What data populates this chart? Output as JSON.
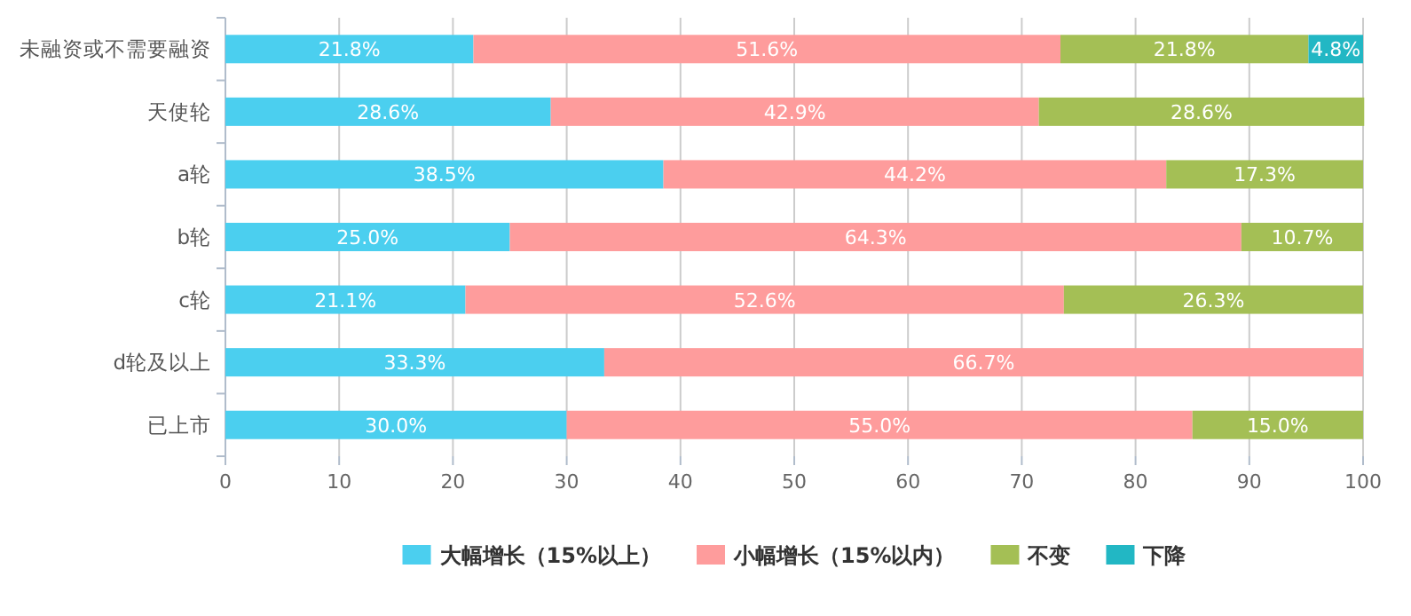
{
  "chart_data": {
    "type": "bar",
    "orientation": "horizontal",
    "stacked": true,
    "categories": [
      "未融资或不需要融资",
      "天使轮",
      "a轮",
      "b轮",
      "c轮",
      "d轮及以上",
      "已上市"
    ],
    "series": [
      {
        "name": "大幅增长（15%以上）",
        "color": "#4bcfef",
        "values": [
          21.8,
          28.6,
          38.5,
          25.0,
          21.1,
          33.3,
          30.0
        ],
        "value_labels": [
          "21.8%",
          "28.6%",
          "38.5%",
          "25.0%",
          "21.1%",
          "33.3%",
          "30.0%"
        ]
      },
      {
        "name": "小幅增长（15%以内）",
        "color": "#fe9c9c",
        "values": [
          51.6,
          42.9,
          44.2,
          64.3,
          52.6,
          66.7,
          55.0
        ],
        "value_labels": [
          "51.6%",
          "42.9%",
          "44.2%",
          "64.3%",
          "52.6%",
          "66.7%",
          "55.0%"
        ]
      },
      {
        "name": "不变",
        "color": "#a4bf55",
        "values": [
          21.8,
          28.6,
          17.3,
          10.7,
          26.3,
          null,
          15.0
        ],
        "value_labels": [
          "21.8%",
          "28.6%",
          "17.3%",
          "10.7%",
          "26.3%",
          null,
          "15.0%"
        ]
      },
      {
        "name": "下降",
        "color": "#22b7c4",
        "values": [
          4.8,
          null,
          null,
          null,
          null,
          null,
          null
        ],
        "value_labels": [
          "4.8%",
          null,
          null,
          null,
          null,
          null,
          null
        ]
      }
    ],
    "xlim": [
      0,
      100
    ],
    "xticks": [
      0,
      10,
      20,
      30,
      40,
      50,
      60,
      70,
      80,
      90,
      100
    ],
    "grid": "x",
    "legend": "bottom"
  }
}
